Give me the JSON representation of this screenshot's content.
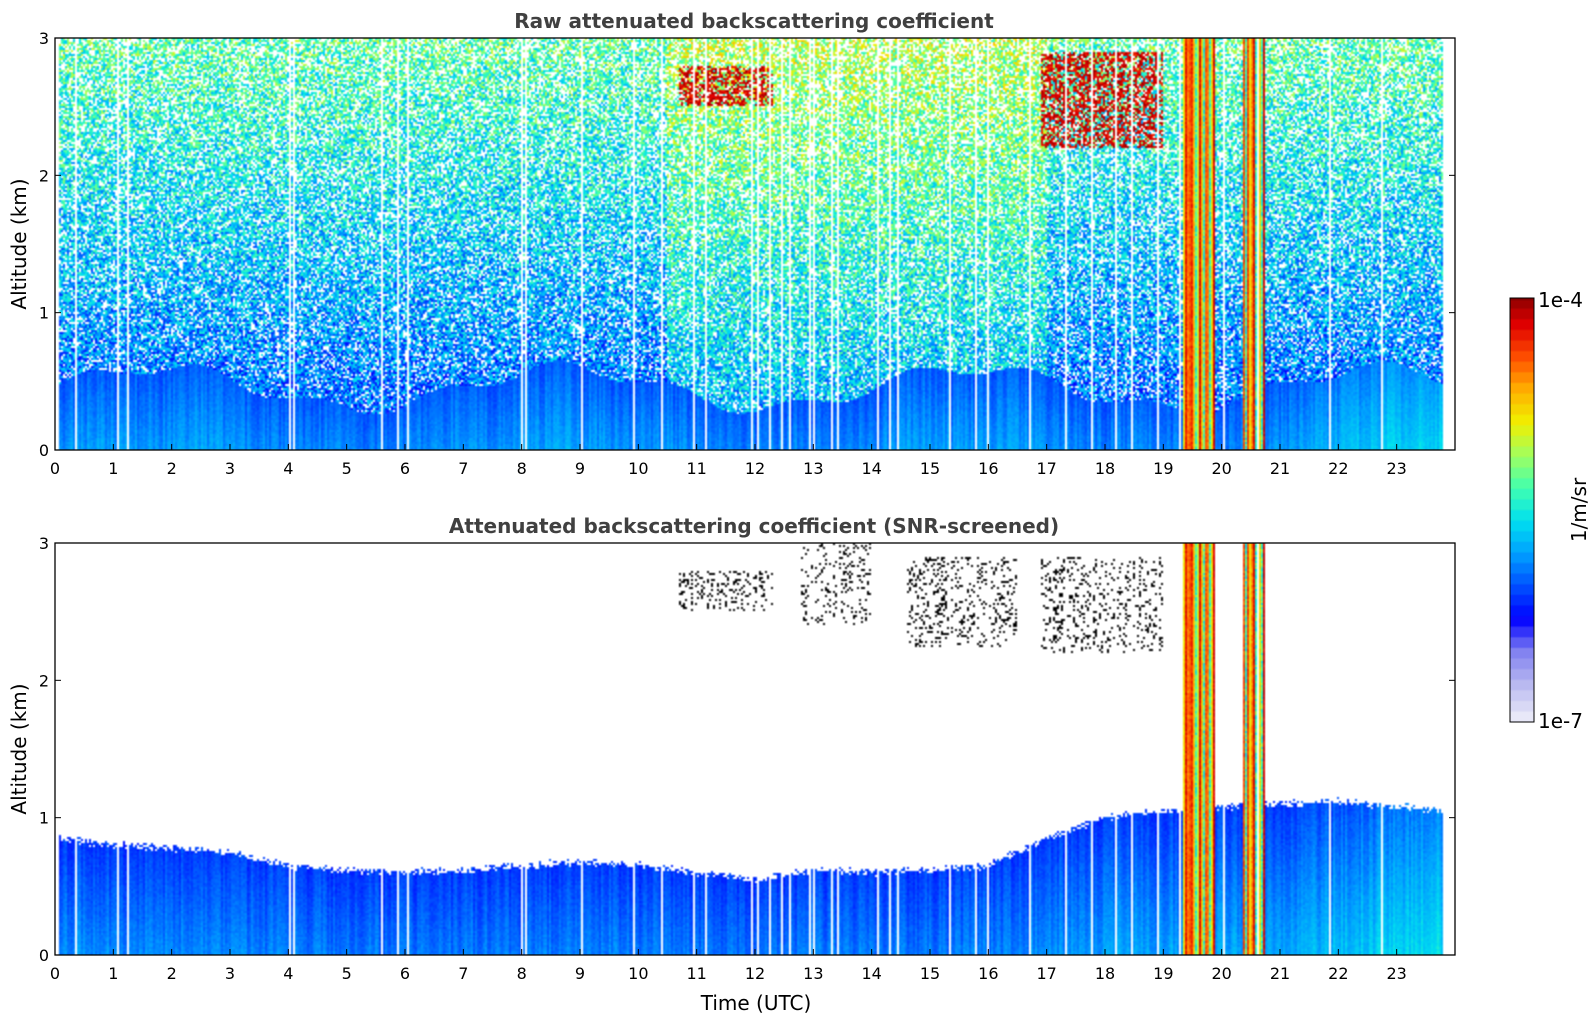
{
  "chart_data": [
    {
      "type": "heatmap",
      "title": "Raw attenuated backscattering coefficient",
      "xlabel": "",
      "ylabel": "Altitude (km)",
      "xlim": [
        0,
        24
      ],
      "ylim": [
        0,
        3
      ],
      "xticks": [
        "0",
        "1",
        "2",
        "3",
        "4",
        "5",
        "6",
        "7",
        "8",
        "9",
        "10",
        "11",
        "12",
        "13",
        "14",
        "15",
        "16",
        "17",
        "18",
        "19",
        "20",
        "21",
        "22",
        "23"
      ],
      "yticks": [
        "0",
        "1",
        "2",
        "3"
      ],
      "data_end_hour": 23.8,
      "screening": "none",
      "features": [
        {
          "kind": "boundary_layer",
          "top_km": 0.6,
          "level": "moderate"
        },
        {
          "kind": "cloud",
          "x": [
            10.7,
            12.3
          ],
          "y": [
            2.5,
            2.8
          ],
          "level": "high"
        },
        {
          "kind": "cloud",
          "x": [
            16.9,
            19.0
          ],
          "y": [
            2.2,
            2.9
          ],
          "level": "high"
        },
        {
          "kind": "precipitation",
          "x": [
            19.35,
            19.9
          ],
          "y": [
            0,
            3.0
          ],
          "level": "very_high"
        },
        {
          "kind": "precipitation",
          "x": [
            20.35,
            20.75
          ],
          "y": [
            0,
            3.0
          ],
          "level": "very_high"
        }
      ]
    },
    {
      "type": "heatmap",
      "title": "Attenuated backscattering coefficient (SNR-screened)",
      "xlabel": "Time (UTC)",
      "ylabel": "Altitude (km)",
      "xlim": [
        0,
        24
      ],
      "ylim": [
        0,
        3
      ],
      "xticks": [
        "0",
        "1",
        "2",
        "3",
        "4",
        "5",
        "6",
        "7",
        "8",
        "9",
        "10",
        "11",
        "12",
        "13",
        "14",
        "15",
        "16",
        "17",
        "18",
        "19",
        "20",
        "21",
        "22",
        "23"
      ],
      "yticks": [
        "0",
        "1",
        "2",
        "3"
      ],
      "data_end_hour": 23.8,
      "screening": "snr",
      "boundary_layer_top_km": [
        [
          0,
          0.85
        ],
        [
          1,
          0.8
        ],
        [
          2,
          0.78
        ],
        [
          3,
          0.75
        ],
        [
          4,
          0.65
        ],
        [
          5,
          0.62
        ],
        [
          6,
          0.6
        ],
        [
          7,
          0.62
        ],
        [
          8,
          0.65
        ],
        [
          9,
          0.68
        ],
        [
          10,
          0.65
        ],
        [
          11,
          0.6
        ],
        [
          12,
          0.55
        ],
        [
          13,
          0.62
        ],
        [
          14,
          0.6
        ],
        [
          15,
          0.62
        ],
        [
          16,
          0.65
        ],
        [
          17,
          0.85
        ],
        [
          18,
          1.0
        ],
        [
          19,
          1.05
        ],
        [
          21,
          1.1
        ],
        [
          22,
          1.12
        ],
        [
          23,
          1.08
        ],
        [
          23.8,
          1.05
        ]
      ],
      "features": [
        {
          "kind": "cloud_edges",
          "x": [
            10.7,
            12.3
          ],
          "y": [
            2.5,
            2.8
          ],
          "color": "black"
        },
        {
          "kind": "cloud_edges",
          "x": [
            12.8,
            14.0
          ],
          "y": [
            2.4,
            3.0
          ],
          "color": "black"
        },
        {
          "kind": "cloud_edges",
          "x": [
            14.6,
            16.5
          ],
          "y": [
            2.25,
            2.9
          ],
          "color": "black"
        },
        {
          "kind": "cloud_edges",
          "x": [
            16.9,
            19.0
          ],
          "y": [
            2.2,
            2.9
          ],
          "color": "black"
        },
        {
          "kind": "precipitation",
          "x": [
            19.35,
            19.9
          ],
          "y": [
            0,
            3.0
          ],
          "level": "very_high"
        },
        {
          "kind": "precipitation",
          "x": [
            20.35,
            20.75
          ],
          "y": [
            0,
            3.0
          ],
          "level": "very_high"
        }
      ]
    }
  ],
  "colorbar": {
    "label": "1/m/sr",
    "max_label": "1e-4",
    "min_label": "1e-7",
    "colormap": [
      "#e8e8f8",
      "#b8b8f0",
      "#8080f0",
      "#0000ff",
      "#0050ff",
      "#00a0ff",
      "#00e0f0",
      "#40ffb0",
      "#a0ff60",
      "#f0f000",
      "#ffb000",
      "#ff5000",
      "#e00000",
      "#800000"
    ]
  }
}
